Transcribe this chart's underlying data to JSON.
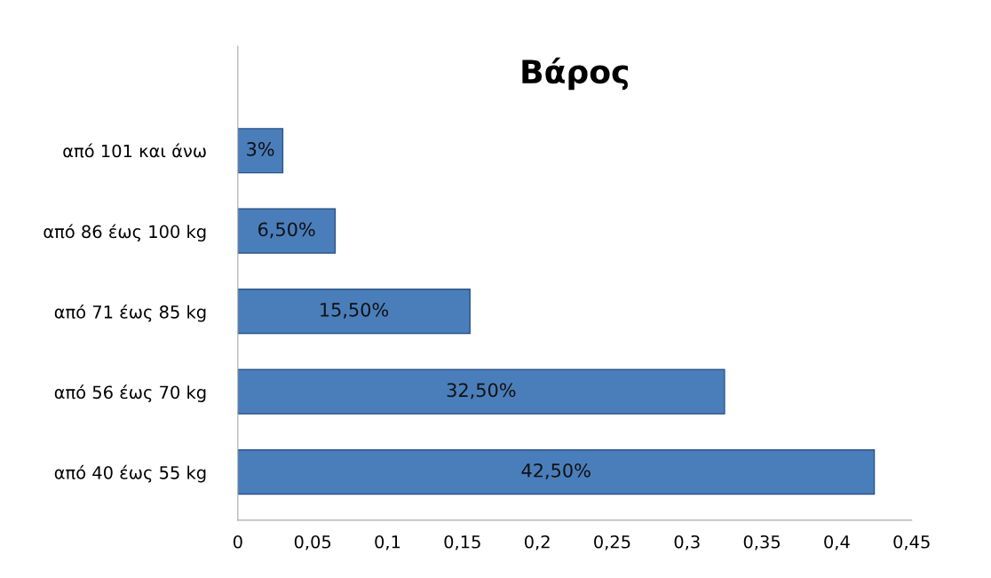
{
  "chart_data": {
    "type": "bar",
    "title": "Βάρος",
    "orientation": "horizontal",
    "categories": [
      "από 101 και άνω",
      "από 86 έως 100 kg",
      "από 71 έως 85 kg",
      "από 56 έως 70 kg",
      "από 40 έως 55 kg"
    ],
    "values": [
      0.03,
      0.065,
      0.155,
      0.325,
      0.425
    ],
    "value_labels": [
      "3%",
      "6,50%",
      "15,50%",
      "32,50%",
      "42,50%"
    ],
    "color": "#4a7ebb",
    "xlim": [
      0,
      0.45
    ],
    "xticks": [
      0,
      {
        "value": 0.05,
        "label": "0,05"
      },
      {
        "value": 0.1,
        "label": "0,1"
      },
      {
        "value": 0.15,
        "label": "0,15"
      },
      {
        "value": 0.2,
        "label": "0,2"
      },
      {
        "value": 0.25,
        "label": "0,25"
      },
      {
        "value": 0.3,
        "label": "0,3"
      },
      {
        "value": 0.35,
        "label": "0,35"
      },
      {
        "value": 0.4,
        "label": "0,4"
      },
      {
        "value": 0.45,
        "label": "0,45"
      }
    ],
    "grid": false,
    "legend": false
  }
}
